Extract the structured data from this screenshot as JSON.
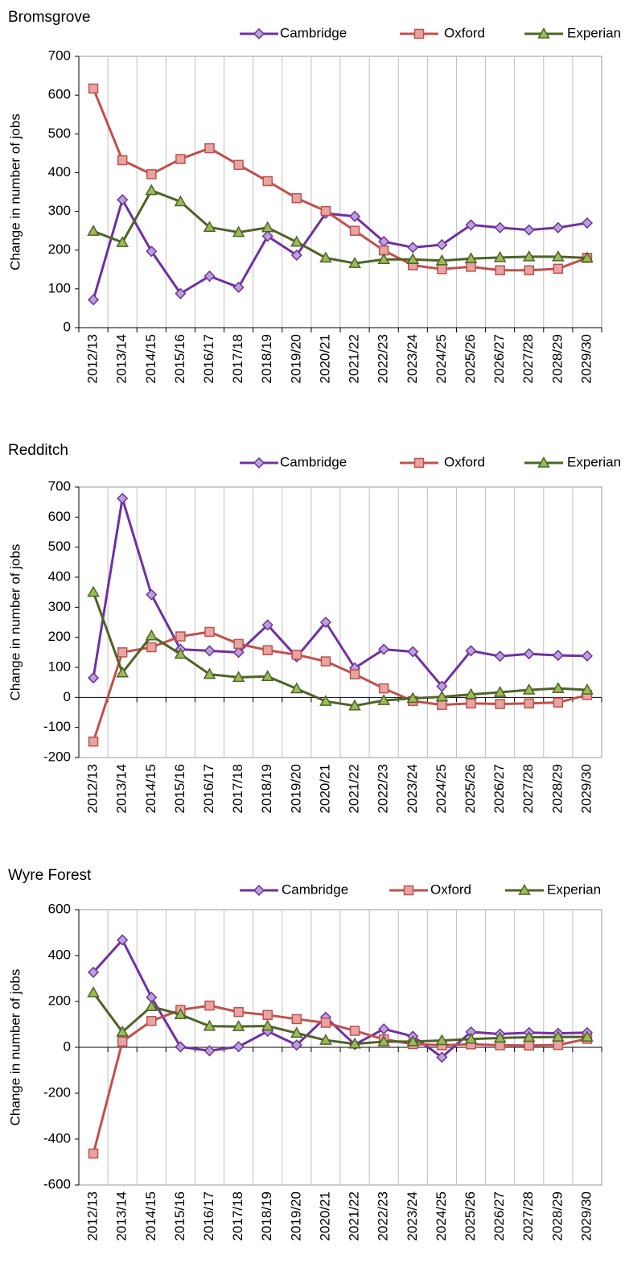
{
  "chart_data": [
    {
      "type": "line",
      "title": "Bromsgrove",
      "y_label": "Change in number of jobs",
      "categories": [
        "2012/13",
        "2013/14",
        "2014/15",
        "2015/16",
        "2016/17",
        "2017/18",
        "2018/19",
        "2019/20",
        "2020/21",
        "2021/22",
        "2022/23",
        "2023/24",
        "2024/25",
        "2025/26",
        "2026/27",
        "2027/28",
        "2028/29",
        "2029/30"
      ],
      "series": [
        {
          "name": "Cambridge",
          "color": "#7030a0",
          "values": [
            72,
            330,
            197,
            88,
            133,
            104,
            236,
            187,
            295,
            287,
            222,
            207,
            214,
            265,
            258,
            252,
            258,
            270
          ]
        },
        {
          "name": "Oxford",
          "color": "#c0504d",
          "values": [
            617,
            432,
            396,
            435,
            463,
            420,
            378,
            334,
            301,
            250,
            199,
            161,
            151,
            157,
            148,
            148,
            152,
            180
          ]
        },
        {
          "name": "Experian",
          "color": "#4f6228",
          "values": [
            249,
            220,
            354,
            325,
            259,
            246,
            258,
            221,
            180,
            166,
            176,
            176,
            173,
            178,
            181,
            183,
            183,
            180
          ]
        }
      ],
      "ylim": [
        0,
        700
      ],
      "yticks": [
        0,
        100,
        200,
        300,
        400,
        500,
        600,
        700
      ],
      "grid": true
    },
    {
      "type": "line",
      "title": "Redditch",
      "y_label": "Change in number of jobs",
      "categories": [
        "2012/13",
        "2013/14",
        "2014/15",
        "2015/16",
        "2016/17",
        "2017/18",
        "2018/19",
        "2019/20",
        "2020/21",
        "2021/22",
        "2022/23",
        "2023/24",
        "2024/25",
        "2025/26",
        "2026/27",
        "2027/28",
        "2028/29",
        "2029/30"
      ],
      "series": [
        {
          "name": "Cambridge",
          "color": "#7030a0",
          "values": [
            65,
            662,
            342,
            160,
            155,
            150,
            241,
            135,
            250,
            98,
            160,
            152,
            37,
            155,
            137,
            145,
            140,
            138
          ]
        },
        {
          "name": "Oxford",
          "color": "#c0504d",
          "values": [
            -147,
            150,
            167,
            203,
            218,
            178,
            157,
            142,
            120,
            77,
            30,
            -12,
            -25,
            -20,
            -22,
            -20,
            -17,
            8
          ]
        },
        {
          "name": "Experian",
          "color": "#4f6228",
          "values": [
            350,
            82,
            205,
            144,
            77,
            67,
            70,
            29,
            -13,
            -28,
            -10,
            -3,
            2,
            10,
            17,
            25,
            30,
            25
          ]
        }
      ],
      "ylim": [
        -200,
        700
      ],
      "yticks": [
        -200,
        -100,
        0,
        100,
        200,
        300,
        400,
        500,
        600,
        700
      ],
      "grid": true
    },
    {
      "type": "line",
      "title": "Wyre Forest",
      "y_label": "Change in number of jobs",
      "categories": [
        "2012/13",
        "2013/14",
        "2014/15",
        "2015/16",
        "2016/17",
        "2017/18",
        "2018/19",
        "2019/20",
        "2020/21",
        "2021/22",
        "2022/23",
        "2023/24",
        "2024/25",
        "2025/26",
        "2026/27",
        "2027/28",
        "2028/29",
        "2029/30"
      ],
      "series": [
        {
          "name": "Cambridge",
          "color": "#7030a0",
          "values": [
            327,
            468,
            218,
            2,
            -15,
            3,
            70,
            10,
            131,
            12,
            80,
            48,
            -43,
            67,
            58,
            64,
            61,
            64
          ]
        },
        {
          "name": "Oxford",
          "color": "#c0504d",
          "values": [
            -463,
            25,
            115,
            163,
            182,
            154,
            141,
            123,
            107,
            72,
            35,
            14,
            9,
            13,
            9,
            8,
            10,
            37
          ]
        },
        {
          "name": "Experian",
          "color": "#4f6228",
          "values": [
            238,
            67,
            178,
            143,
            92,
            91,
            93,
            62,
            31,
            15,
            25,
            25,
            30,
            36,
            41,
            44,
            45,
            45
          ]
        }
      ],
      "ylim": [
        -600,
        600
      ],
      "yticks": [
        -600,
        -400,
        -200,
        0,
        200,
        400,
        600
      ],
      "grid": true
    }
  ]
}
